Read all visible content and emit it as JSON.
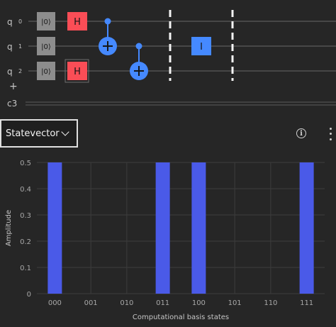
{
  "circuit": {
    "qubits": [
      {
        "letter": "q",
        "index": "0"
      },
      {
        "letter": "q",
        "index": "1"
      },
      {
        "letter": "q",
        "index": "2"
      }
    ],
    "add_wire_symbol": "+",
    "classical_register": "c3",
    "init_label": "|0⟩",
    "h_label": "H",
    "i_label": "I",
    "colors": {
      "h_gate": "#fa4d56",
      "cnot": "#4589ff",
      "i_gate": "#4589ff",
      "init": "#8d8d8d"
    }
  },
  "toolbar": {
    "view_selector_label": "Statevector",
    "info_icon": "info-icon",
    "more_icon": "overflow-menu-icon"
  },
  "chart_data": {
    "type": "bar",
    "categories": [
      "000",
      "001",
      "010",
      "011",
      "100",
      "101",
      "110",
      "111"
    ],
    "values": [
      0.5,
      0,
      0,
      0.5,
      0.5,
      0,
      0,
      0.5
    ],
    "xlabel": "Computational basis states",
    "ylabel": "Amplitude",
    "ylim": [
      0,
      0.5
    ],
    "yticks": [
      "0",
      "0.1",
      "0.2",
      "0.3",
      "0.4",
      "0.5"
    ],
    "grid": true,
    "bar_color": "#4a5ae8"
  }
}
